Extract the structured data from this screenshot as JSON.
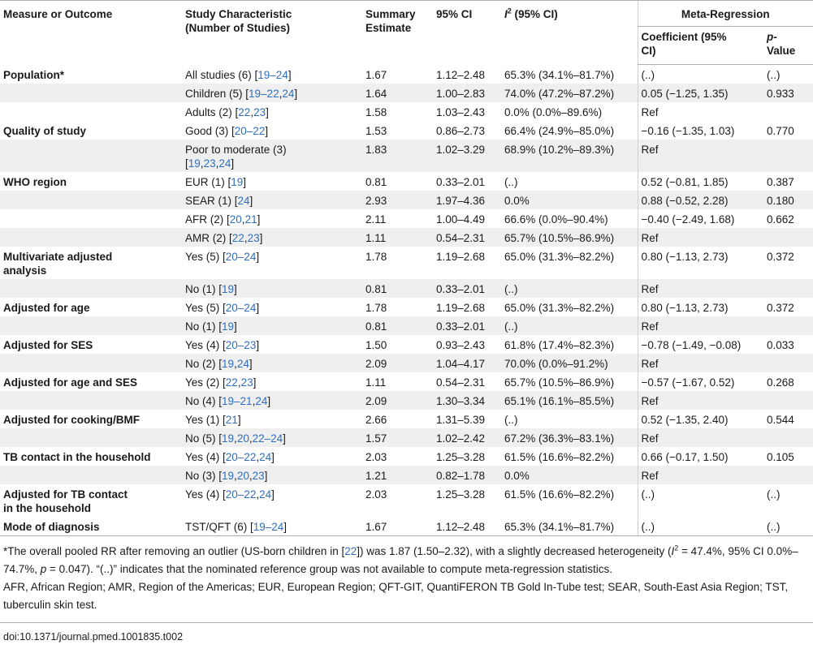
{
  "header": {
    "col1": "Measure or Outcome",
    "col2_line1": "Study Characteristic",
    "col2_line2": "(Number of Studies)",
    "col3_line1": "Summary",
    "col3_line2": "Estimate",
    "col4": "95% CI",
    "col5_i": "I",
    "col5_sup": "2",
    "col5_rest": " (95% CI)",
    "meta_regression": "Meta-Regression",
    "coef_line1": "Coefficient (95%",
    "coef_line2": "CI)",
    "p_line1": "p-",
    "p_line2": "Value"
  },
  "rows": [
    {
      "measure": "Population*",
      "char_text": "All studies (6) [",
      "refs": [
        "19–24"
      ],
      "est": "1.67",
      "ci": "1.12–2.48",
      "i2": "65.3% (34.1%–81.7%)",
      "coef": "(..)",
      "p": "(..)"
    },
    {
      "measure": "",
      "char_text": "Children (5) [",
      "refs": [
        "19–22",
        "24"
      ],
      "est": "1.64",
      "ci": "1.00–2.83",
      "i2": "74.0% (47.2%–87.2%)",
      "coef": "0.05 (−1.25, 1.35)",
      "p": "0.933"
    },
    {
      "measure": "",
      "char_text": "Adults (2) [",
      "refs": [
        "22",
        "23"
      ],
      "est": "1.58",
      "ci": "1.03–2.43",
      "i2": "0.0% (0.0%–89.6%)",
      "coef": "Ref",
      "p": ""
    },
    {
      "measure": "Quality of study",
      "char_text": "Good (3) [",
      "refs": [
        "20–22"
      ],
      "est": "1.53",
      "ci": "0.86–2.73",
      "i2": "66.4% (24.9%–85.0%)",
      "coef": "−0.16 (−1.35, 1.03)",
      "p": "0.770"
    },
    {
      "measure": "",
      "char_text": "Poor to moderate (3)",
      "char_text2": "[",
      "refs": [
        "19",
        "23",
        "24"
      ],
      "est": "1.83",
      "ci": "1.02–3.29",
      "i2": "68.9% (10.2%–89.3%)",
      "coef": "Ref",
      "p": ""
    },
    {
      "measure": "WHO region",
      "char_text": "EUR (1) [",
      "refs": [
        "19"
      ],
      "est": "0.81",
      "ci": "0.33–2.01",
      "i2": "(..)",
      "coef": "0.52 (−0.81, 1.85)",
      "p": "0.387"
    },
    {
      "measure": "",
      "char_text": "SEAR (1) [",
      "refs": [
        "24"
      ],
      "est": "2.93",
      "ci": "1.97–4.36",
      "i2": "0.0%",
      "coef": "0.88 (−0.52, 2.28)",
      "p": "0.180"
    },
    {
      "measure": "",
      "char_text": "AFR (2) [",
      "refs": [
        "20",
        "21"
      ],
      "est": "2.11",
      "ci": "1.00–4.49",
      "i2": "66.6% (0.0%–90.4%)",
      "coef": "−0.40 (−2.49, 1.68)",
      "p": "0.662"
    },
    {
      "measure": "",
      "char_text": "AMR (2) [",
      "refs": [
        "22",
        "23"
      ],
      "est": "1.11",
      "ci": "0.54–2.31",
      "i2": "65.7% (10.5%–86.9%)",
      "coef": "Ref",
      "p": ""
    },
    {
      "measure": "Multivariate adjusted",
      "measure2": "analysis",
      "char_text": "Yes (5) [",
      "refs": [
        "20–24"
      ],
      "est": "1.78",
      "ci": "1.19–2.68",
      "i2": "65.0% (31.3%–82.2%)",
      "coef": "0.80 (−1.13, 2.73)",
      "p": "0.372"
    },
    {
      "measure": "",
      "char_text": "No (1) [",
      "refs": [
        "19"
      ],
      "est": "0.81",
      "ci": "0.33–2.01",
      "i2": "(..)",
      "coef": "Ref",
      "p": ""
    },
    {
      "measure": "Adjusted for age",
      "char_text": "Yes (5) [",
      "refs": [
        "20–24"
      ],
      "est": "1.78",
      "ci": "1.19–2.68",
      "i2": "65.0% (31.3%–82.2%)",
      "coef": "0.80 (−1.13, 2.73)",
      "p": "0.372"
    },
    {
      "measure": "",
      "char_text": "No (1) [",
      "refs": [
        "19"
      ],
      "est": "0.81",
      "ci": "0.33–2.01",
      "i2": "(..)",
      "coef": "Ref",
      "p": ""
    },
    {
      "measure": "Adjusted for SES",
      "char_text": "Yes (4) [",
      "refs": [
        "20–23"
      ],
      "est": "1.50",
      "ci": "0.93–2.43",
      "i2": "61.8% (17.4%–82.3%)",
      "coef": "−0.78 (−1.49, −0.08)",
      "p": "0.033"
    },
    {
      "measure": "",
      "char_text": "No (2) [",
      "refs": [
        "19",
        "24"
      ],
      "est": "2.09",
      "ci": "1.04–4.17",
      "i2": "70.0% (0.0%–91.2%)",
      "coef": "Ref",
      "p": ""
    },
    {
      "measure": "Adjusted for age and SES",
      "char_text": "Yes (2) [",
      "refs": [
        "22",
        "23"
      ],
      "est": "1.11",
      "ci": "0.54–2.31",
      "i2": "65.7% (10.5%–86.9%)",
      "coef": "−0.57 (−1.67, 0.52)",
      "p": "0.268"
    },
    {
      "measure": "",
      "char_text": "No (4) [",
      "refs": [
        "19–21",
        "24"
      ],
      "est": "2.09",
      "ci": "1.30–3.34",
      "i2": "65.1% (16.1%–85.5%)",
      "coef": "Ref",
      "p": ""
    },
    {
      "measure": "Adjusted for cooking/BMF",
      "char_text": "Yes (1) [",
      "refs": [
        "21"
      ],
      "est": "2.66",
      "ci": "1.31–5.39",
      "i2": "(..)",
      "coef": "0.52 (−1.35, 2.40)",
      "p": "0.544"
    },
    {
      "measure": "",
      "char_text": "No (5) [",
      "refs": [
        "19",
        "20",
        "22–24"
      ],
      "est": "1.57",
      "ci": "1.02–2.42",
      "i2": "67.2% (36.3%–83.1%)",
      "coef": "Ref",
      "p": ""
    },
    {
      "measure": "TB contact in the household",
      "char_text": "Yes (4) [",
      "refs": [
        "20–22",
        "24"
      ],
      "est": "2.03",
      "ci": "1.25–3.28",
      "i2": "61.5% (16.6%–82.2%)",
      "coef": "0.66 (−0.17, 1.50)",
      "p": "0.105"
    },
    {
      "measure": "",
      "char_text": "No (3) [",
      "refs": [
        "19",
        "20",
        "23"
      ],
      "est": "1.21",
      "ci": "0.82–1.78",
      "i2": "0.0%",
      "coef": "Ref",
      "p": ""
    },
    {
      "measure": "Adjusted for TB contact",
      "measure2": "in the household",
      "char_text": "Yes (4) [",
      "refs": [
        "20–22",
        "24"
      ],
      "est": "2.03",
      "ci": "1.25–3.28",
      "i2": "61.5% (16.6%–82.2%)",
      "coef": "(..)",
      "p": "(..)"
    },
    {
      "measure": "Mode of diagnosis",
      "char_text": "TST/QFT (6) [",
      "refs": [
        "19–24"
      ],
      "est": "1.67",
      "ci": "1.12–2.48",
      "i2": "65.3% (34.1%–81.7%)",
      "coef": "(..)",
      "p": "(..)"
    }
  ],
  "footnote": {
    "part1": "*The overall pooled RR after removing an outlier (US-born children in [",
    "ref": "22",
    "part2": "]) was 1.87 (1.50–2.32), with a slightly decreased heterogeneity (",
    "i": "I",
    "sup": "2",
    "part3": " = 47.4%, 95% CI 0.0%–74.7%, ",
    "p": "p",
    "part4": " = 0.047). “(..)” indicates that the nominated reference group was not available to compute meta-regression statistics."
  },
  "abbreviations": "AFR, African Region; AMR, Region of the Americas; EUR, European Region; QFT-GIT, QuantiFERON TB Gold In-Tube test; SEAR, South-East Asia Region; TST, tuberculin skin test.",
  "doi": "doi:10.1371/journal.pmed.1001835.t002"
}
